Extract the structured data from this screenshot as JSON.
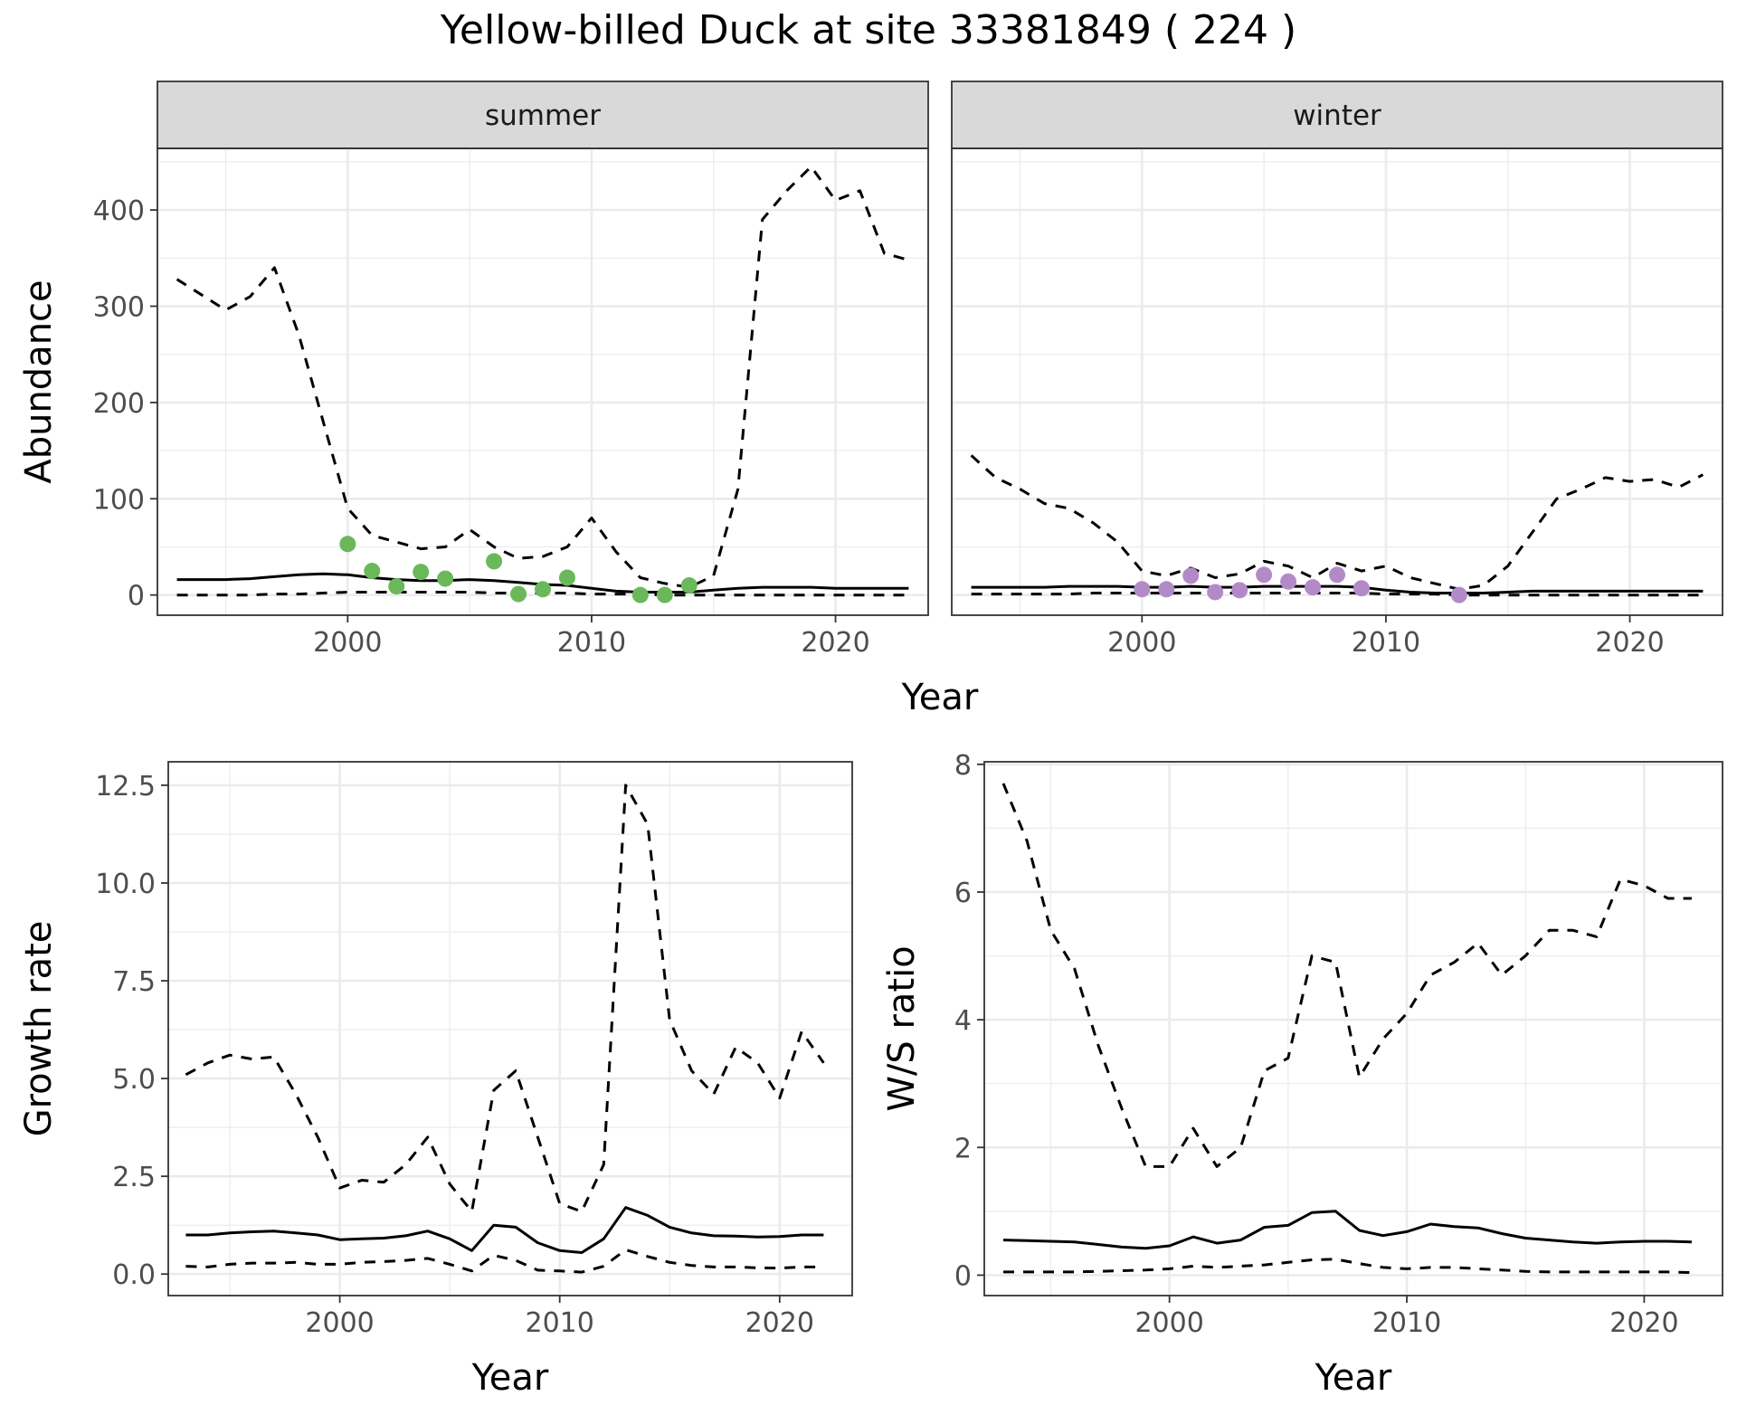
{
  "title": "Yellow-billed Duck at site 33381849 ( 224 )",
  "colors": {
    "summer_points": "#6ab85a",
    "winter_points": "#b38ac8",
    "lines": "#000000"
  },
  "chart_data": [
    {
      "id": "abundance",
      "type": "line",
      "facets": [
        "summer",
        "winter"
      ],
      "xlabel": "Year",
      "ylabel": "Abundance",
      "xlim": [
        1992.2,
        2023.8
      ],
      "ylim": [
        -21,
        464
      ],
      "x_ticks": [
        2000,
        2010,
        2020
      ],
      "y_ticks": [
        0,
        100,
        200,
        300,
        400
      ],
      "grid": true,
      "panels": {
        "summer": {
          "strip": "summer",
          "x": [
            1993,
            1994,
            1995,
            1996,
            1997,
            1998,
            1999,
            2000,
            2001,
            2002,
            2003,
            2004,
            2005,
            2006,
            2007,
            2008,
            2009,
            2010,
            2011,
            2012,
            2013,
            2014,
            2015,
            2016,
            2017,
            2018,
            2019,
            2020,
            2021,
            2022,
            2023
          ],
          "series": [
            {
              "style": "solid",
              "values": [
                16,
                16,
                16,
                17,
                19,
                21,
                22,
                21,
                18,
                16,
                15,
                15,
                16,
                15,
                13,
                11,
                10,
                7,
                4,
                3,
                3,
                3,
                5,
                7,
                8,
                8,
                8,
                7,
                7,
                7,
                7
              ]
            },
            {
              "style": "dashed-upper",
              "values": [
                328,
                312,
                296,
                310,
                340,
                270,
                180,
                90,
                62,
                55,
                48,
                50,
                68,
                50,
                38,
                40,
                50,
                80,
                45,
                18,
                12,
                8,
                20,
                110,
                390,
                420,
                445,
                410,
                420,
                355,
                348
              ]
            },
            {
              "style": "dashed-lower",
              "values": [
                0,
                0,
                0,
                0,
                1,
                1,
                2,
                3,
                3,
                3,
                3,
                3,
                3,
                2,
                2,
                2,
                2,
                1,
                1,
                1,
                0,
                0,
                0,
                0,
                0,
                0,
                0,
                0,
                0,
                0,
                0
              ]
            }
          ],
          "points": {
            "x": [
              2000,
              2001,
              2002,
              2003,
              2004,
              2006,
              2007,
              2008,
              2009,
              2012,
              2013,
              2014
            ],
            "y": [
              53,
              25,
              9,
              24,
              17,
              35,
              1,
              6,
              18,
              0,
              0,
              10
            ]
          }
        },
        "winter": {
          "strip": "winter",
          "x": [
            1993,
            1994,
            1995,
            1996,
            1997,
            1998,
            1999,
            2000,
            2001,
            2002,
            2003,
            2004,
            2005,
            2006,
            2007,
            2008,
            2009,
            2010,
            2011,
            2012,
            2013,
            2014,
            2015,
            2016,
            2017,
            2018,
            2019,
            2020,
            2021,
            2022,
            2023
          ],
          "series": [
            {
              "style": "solid",
              "values": [
                8,
                8,
                8,
                8,
                9,
                9,
                9,
                8,
                8,
                9,
                8,
                8,
                9,
                9,
                9,
                9,
                8,
                5,
                3,
                2,
                2,
                2,
                3,
                4,
                4,
                4,
                4,
                4,
                4,
                4,
                4
              ]
            },
            {
              "style": "dashed-upper",
              "values": [
                145,
                122,
                110,
                95,
                90,
                75,
                55,
                25,
                20,
                28,
                18,
                22,
                35,
                30,
                18,
                33,
                25,
                30,
                18,
                12,
                6,
                10,
                30,
                65,
                100,
                110,
                122,
                118,
                120,
                112,
                125
              ]
            },
            {
              "style": "dashed-lower",
              "values": [
                1,
                1,
                1,
                1,
                1,
                2,
                2,
                2,
                2,
                2,
                2,
                2,
                2,
                2,
                2,
                2,
                2,
                1,
                1,
                1,
                0,
                0,
                0,
                0,
                0,
                0,
                0,
                0,
                0,
                0,
                0
              ]
            }
          ],
          "points": {
            "x": [
              2000,
              2001,
              2002,
              2003,
              2004,
              2005,
              2006,
              2007,
              2008,
              2009,
              2013
            ],
            "y": [
              6,
              6,
              20,
              3,
              5,
              21,
              14,
              8,
              21,
              7,
              0
            ]
          }
        }
      }
    },
    {
      "id": "growth",
      "type": "line",
      "xlabel": "Year",
      "ylabel": "Growth rate",
      "xlim": [
        1992.2,
        2023.3
      ],
      "ylim": [
        -0.55,
        13.1
      ],
      "x_ticks": [
        2000,
        2010,
        2020
      ],
      "y_ticks": [
        0.0,
        2.5,
        5.0,
        7.5,
        10.0,
        12.5
      ],
      "y_tick_labels": [
        "0.0",
        "2.5",
        "5.0",
        "7.5",
        "10.0",
        "12.5"
      ],
      "grid": true,
      "x": [
        1993,
        1994,
        1995,
        1996,
        1997,
        1998,
        1999,
        2000,
        2001,
        2002,
        2003,
        2004,
        2005,
        2006,
        2007,
        2008,
        2009,
        2010,
        2011,
        2012,
        2013,
        2014,
        2015,
        2016,
        2017,
        2018,
        2019,
        2020,
        2021,
        2022
      ],
      "series": [
        {
          "style": "solid",
          "values": [
            1.0,
            1.0,
            1.05,
            1.08,
            1.1,
            1.05,
            1.0,
            0.88,
            0.9,
            0.92,
            0.98,
            1.1,
            0.9,
            0.6,
            1.25,
            1.2,
            0.8,
            0.6,
            0.55,
            0.9,
            1.7,
            1.5,
            1.2,
            1.05,
            0.98,
            0.97,
            0.95,
            0.96,
            1.0,
            1.0
          ]
        },
        {
          "style": "dashed-upper",
          "values": [
            5.1,
            5.4,
            5.6,
            5.5,
            5.55,
            4.6,
            3.5,
            2.2,
            2.4,
            2.35,
            2.8,
            3.5,
            2.3,
            1.6,
            4.7,
            5.2,
            3.5,
            1.8,
            1.6,
            2.8,
            12.5,
            11.5,
            6.5,
            5.2,
            4.6,
            5.8,
            5.4,
            4.5,
            6.2,
            5.4
          ]
        },
        {
          "style": "dashed-lower",
          "values": [
            0.2,
            0.18,
            0.25,
            0.28,
            0.28,
            0.3,
            0.25,
            0.25,
            0.3,
            0.32,
            0.35,
            0.4,
            0.25,
            0.08,
            0.48,
            0.35,
            0.1,
            0.08,
            0.05,
            0.2,
            0.62,
            0.45,
            0.3,
            0.22,
            0.18,
            0.18,
            0.16,
            0.15,
            0.18,
            0.18
          ]
        }
      ]
    },
    {
      "id": "ws",
      "type": "line",
      "xlabel": "Year",
      "ylabel": "W/S ratio",
      "xlim": [
        1992.2,
        2023.3
      ],
      "ylim": [
        -0.32,
        8.04
      ],
      "x_ticks": [
        2000,
        2010,
        2020
      ],
      "y_ticks": [
        0,
        2,
        4,
        6,
        8
      ],
      "grid": true,
      "x": [
        1993,
        1994,
        1995,
        1996,
        1997,
        1998,
        1999,
        2000,
        2001,
        2002,
        2003,
        2004,
        2005,
        2006,
        2007,
        2008,
        2009,
        2010,
        2011,
        2012,
        2013,
        2014,
        2015,
        2016,
        2017,
        2018,
        2019,
        2020,
        2021,
        2022
      ],
      "series": [
        {
          "style": "solid",
          "values": [
            0.55,
            0.54,
            0.53,
            0.52,
            0.48,
            0.44,
            0.42,
            0.46,
            0.6,
            0.5,
            0.55,
            0.75,
            0.78,
            0.98,
            1.0,
            0.7,
            0.62,
            0.68,
            0.8,
            0.76,
            0.74,
            0.65,
            0.58,
            0.55,
            0.52,
            0.5,
            0.52,
            0.53,
            0.53,
            0.52
          ]
        },
        {
          "style": "dashed-upper",
          "values": [
            7.7,
            6.8,
            5.4,
            4.8,
            3.6,
            2.6,
            1.7,
            1.7,
            2.3,
            1.7,
            2.0,
            3.2,
            3.4,
            5.0,
            4.9,
            3.1,
            3.7,
            4.1,
            4.7,
            4.9,
            5.2,
            4.7,
            5.0,
            5.4,
            5.4,
            5.3,
            6.2,
            6.1,
            5.9,
            5.9
          ]
        },
        {
          "style": "dashed-lower",
          "values": [
            0.05,
            0.05,
            0.05,
            0.05,
            0.06,
            0.07,
            0.08,
            0.1,
            0.14,
            0.12,
            0.14,
            0.16,
            0.2,
            0.24,
            0.25,
            0.18,
            0.12,
            0.1,
            0.12,
            0.12,
            0.1,
            0.08,
            0.06,
            0.05,
            0.05,
            0.05,
            0.05,
            0.05,
            0.05,
            0.04
          ]
        }
      ]
    }
  ]
}
